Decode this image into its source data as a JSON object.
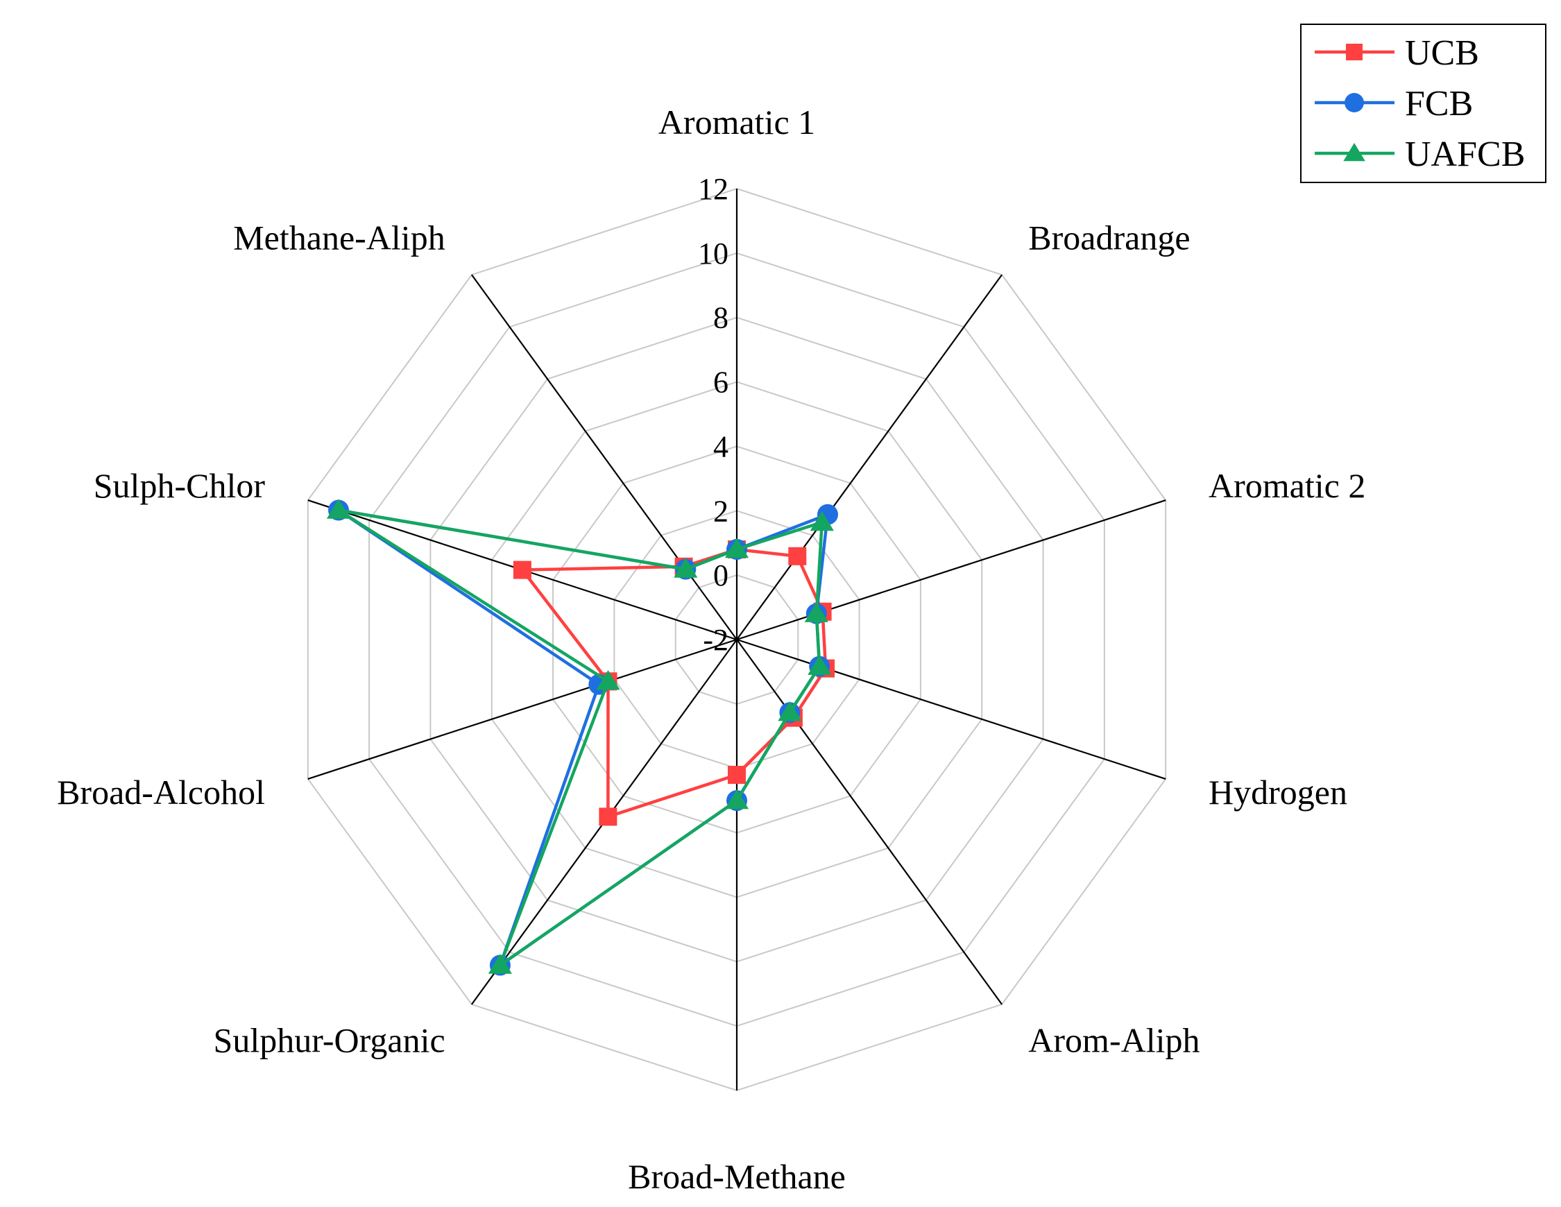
{
  "chart_data": {
    "type": "radar",
    "title": "",
    "axes": [
      "Aromatic 1",
      "Broadrange",
      "Aromatic 2",
      "Hydrogen",
      "Arom-Aliph",
      "Broad-Methane",
      "Sulphur-Organic",
      "Broad-Alcohol",
      "Sulph-Chlor",
      "Methane-Aliph"
    ],
    "scale": {
      "min": -2,
      "max": 12,
      "step": 2
    },
    "ticks": [
      "-2",
      "0",
      "2",
      "4",
      "6",
      "8",
      "10",
      "12"
    ],
    "grid": true,
    "legend_position": "top-right",
    "series": [
      {
        "name": "UCB",
        "color": "#ff4040",
        "marker": "square",
        "values": [
          0.8,
          1.2,
          0.8,
          0.9,
          1.0,
          2.2,
          4.8,
          2.2,
          5.0,
          0.8
        ]
      },
      {
        "name": "FCB",
        "color": "#1f6fe0",
        "marker": "circle",
        "values": [
          0.8,
          2.8,
          0.6,
          0.7,
          0.8,
          3.0,
          10.5,
          2.5,
          11.0,
          0.7
        ]
      },
      {
        "name": "UAFCB",
        "color": "#14a660",
        "marker": "triangle",
        "values": [
          0.8,
          2.5,
          0.6,
          0.7,
          0.8,
          3.0,
          10.5,
          2.2,
          11.0,
          0.7
        ]
      }
    ]
  }
}
